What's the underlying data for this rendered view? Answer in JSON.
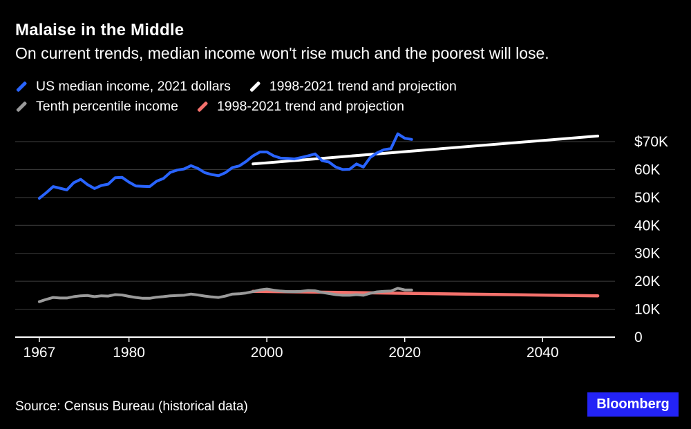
{
  "chart_data": {
    "type": "line",
    "title": "Malaise in the Middle",
    "subtitle": "On current trends, median income won't rise much and the poorest will lose.",
    "legend": [
      {
        "label": "US median income, 2021 dollars",
        "color": "#2964ff"
      },
      {
        "label": "1998-2021 trend and projection",
        "color": "#ffffff"
      },
      {
        "label": "Tenth percentile income",
        "color": "#9a9a9a"
      },
      {
        "label": "1998-2021 trend and projection",
        "color": "#f4716c"
      }
    ],
    "colors": {
      "grid": "#3f3f3f",
      "axis": "#ffffff",
      "background": "#000000"
    },
    "x_axis": {
      "ticks": [
        1967,
        1980,
        2000,
        2020,
        2040
      ],
      "range": [
        1963.5,
        2050.5
      ]
    },
    "y_axis": {
      "ticks": [
        0,
        10000,
        20000,
        30000,
        40000,
        50000,
        60000,
        70000
      ],
      "labels": [
        "0",
        "10K",
        "20K",
        "30K",
        "40K",
        "50K",
        "60K",
        "$70K"
      ],
      "max": 70000
    },
    "series": [
      {
        "id": "median-trend",
        "name": "1998-2021 trend and projection",
        "color": "#ffffff",
        "width": 4,
        "x": [
          1998,
          2048
        ],
        "values": [
          62000,
          72000
        ]
      },
      {
        "id": "tenth-trend",
        "name": "1998-2021 trend and projection",
        "color": "#f4716c",
        "width": 4.5,
        "x": [
          1998,
          2048
        ],
        "values": [
          16400,
          14800
        ]
      },
      {
        "id": "tenth-percentile",
        "name": "Tenth percentile income",
        "color": "#9a9a9a",
        "width": 4,
        "x_start": 1967,
        "values": [
          12700,
          13500,
          14200,
          14000,
          14000,
          14500,
          14800,
          14900,
          14500,
          14800,
          14700,
          15200,
          15100,
          14600,
          14200,
          13900,
          13900,
          14300,
          14500,
          14800,
          14900,
          15000,
          15400,
          15100,
          14700,
          14400,
          14200,
          14700,
          15400,
          15500,
          15800,
          16300,
          16900,
          17200,
          16800,
          16500,
          16300,
          16300,
          16400,
          16700,
          16600,
          16000,
          15600,
          15200,
          15000,
          15000,
          15200,
          15000,
          15700,
          16200,
          16400,
          16500,
          17500,
          16900,
          16900
        ]
      },
      {
        "id": "median-income",
        "name": "US median income, 2021 dollars",
        "color": "#2964ff",
        "width": 4,
        "x_start": 1967,
        "values": [
          49700,
          51700,
          53900,
          53300,
          52700,
          55300,
          56500,
          54600,
          53200,
          54300,
          54800,
          57100,
          57200,
          55500,
          54100,
          54000,
          53900,
          55800,
          56800,
          59000,
          59800,
          60200,
          61400,
          60400,
          58900,
          58200,
          57800,
          58900,
          60700,
          61300,
          62900,
          64900,
          66300,
          66300,
          64900,
          64100,
          64000,
          63800,
          64300,
          64900,
          65600,
          63200,
          62700,
          60900,
          60000,
          60100,
          62000,
          60900,
          64300,
          66000,
          67100,
          67500,
          72800,
          71200,
          70800
        ]
      }
    ]
  },
  "footer": {
    "source": "Source: Census Bureau (historical data)",
    "logo": "Bloomberg",
    "logo_bg": "#2323f6"
  }
}
